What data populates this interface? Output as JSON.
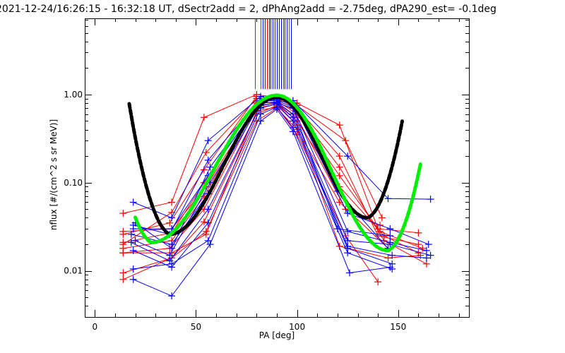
{
  "chart_data": {
    "type": "scatter",
    "title": "2021-12-24/16:26:15 - 16:32:18 UT, dSectr2add = 2, dPhAng2add = -2.75deg, dPA290_est=  -0.1deg",
    "xlabel": "PA [deg]",
    "ylabel": "nflux [#/(cm^2 s sr MeV)]",
    "xlim": [
      -5,
      185
    ],
    "ylim": [
      0.003,
      7.3
    ],
    "yscale": "log",
    "x_ticks": [
      {
        "value": 0,
        "label": "0"
      },
      {
        "value": 50,
        "label": "50"
      },
      {
        "value": 100,
        "label": "100"
      },
      {
        "value": 150,
        "label": "150"
      }
    ],
    "x_minor_step": 10,
    "y_ticks": [
      {
        "value": 0.01,
        "label": "0.01"
      },
      {
        "value": 0.1,
        "label": "0.10"
      },
      {
        "value": 1.0,
        "label": "1.00"
      }
    ],
    "colors": {
      "red": "#ff0000",
      "blue": "#0000ff",
      "black_fit": "#000000",
      "green_fit": "#00ee00",
      "axis": "#000000"
    },
    "series": [
      {
        "name": "red-1",
        "color": "red",
        "x": [
          14,
          38,
          54,
          80,
          90,
          100,
          121,
          140,
          160
        ],
        "y": [
          0.045,
          0.06,
          0.55,
          1.0,
          0.92,
          0.8,
          0.45,
          0.03,
          0.027
        ]
      },
      {
        "name": "red-2",
        "color": "red",
        "x": [
          14,
          37,
          54,
          80,
          90,
          100,
          121,
          140,
          160
        ],
        "y": [
          0.026,
          0.035,
          0.14,
          0.95,
          0.9,
          0.7,
          0.2,
          0.025,
          0.02
        ]
      },
      {
        "name": "red-3",
        "color": "red",
        "x": [
          14,
          38,
          54,
          80,
          90,
          100,
          121,
          141,
          162
        ],
        "y": [
          0.021,
          0.027,
          0.1,
          0.85,
          0.85,
          0.6,
          0.12,
          0.028,
          0.018
        ]
      },
      {
        "name": "red-4",
        "color": "red",
        "x": [
          14,
          38,
          54,
          80,
          90,
          100,
          121,
          143,
          164
        ],
        "y": [
          0.018,
          0.022,
          0.07,
          0.8,
          0.82,
          0.65,
          0.15,
          0.022,
          0.012
        ]
      },
      {
        "name": "red-5",
        "color": "red",
        "x": [
          14,
          37,
          54,
          80,
          90,
          100,
          121,
          143,
          160
        ],
        "y": [
          0.016,
          0.018,
          0.05,
          0.7,
          0.78,
          0.5,
          0.09,
          0.025,
          0.016
        ]
      },
      {
        "name": "red-6",
        "color": "red",
        "x": [
          14,
          38,
          54,
          80,
          90,
          100,
          121,
          145,
          161
        ],
        "y": [
          0.0095,
          0.014,
          0.036,
          0.6,
          0.75,
          0.45,
          0.019,
          0.014,
          0.015
        ]
      },
      {
        "name": "red-7",
        "color": "red",
        "x": [
          14,
          38,
          55,
          80,
          90,
          100,
          121,
          145
        ],
        "y": [
          0.008,
          0.014,
          0.028,
          0.5,
          0.7,
          0.4,
          0.06,
          0.018
        ]
      },
      {
        "name": "red-8",
        "color": "red",
        "x": [
          14,
          38,
          55,
          80,
          90,
          100,
          124,
          142
        ],
        "y": [
          0.02,
          0.046,
          0.22,
          0.9,
          0.88,
          0.75,
          0.3,
          0.04
        ]
      },
      {
        "name": "red-9",
        "color": "red",
        "x": [
          14,
          38,
          55,
          80,
          90,
          100,
          124,
          141
        ],
        "y": [
          0.028,
          0.03,
          0.09,
          0.75,
          0.8,
          0.55,
          0.05,
          0.033
        ]
      },
      {
        "name": "red-10",
        "color": "red",
        "x": [
          14,
          38,
          55,
          80,
          90,
          100,
          124,
          140
        ],
        "y": [
          0.016,
          0.016,
          0.026,
          0.65,
          0.72,
          0.35,
          0.025,
          0.0075
        ]
      },
      {
        "name": "blue-1",
        "color": "blue",
        "x": [
          19,
          38,
          56,
          82,
          90,
          98,
          125,
          145,
          166
        ],
        "y": [
          0.06,
          0.04,
          0.3,
          0.95,
          0.9,
          0.85,
          0.2,
          0.066,
          0.065
        ]
      },
      {
        "name": "blue-2",
        "color": "blue",
        "x": [
          19,
          37,
          56,
          82,
          90,
          98,
          125,
          146,
          165
        ],
        "y": [
          0.033,
          0.026,
          0.18,
          0.9,
          0.85,
          0.8,
          0.045,
          0.03,
          0.02
        ]
      },
      {
        "name": "blue-3",
        "color": "blue",
        "x": [
          19,
          38,
          56,
          82,
          90,
          98,
          125,
          146,
          164
        ],
        "y": [
          0.03,
          0.03,
          0.12,
          0.85,
          0.85,
          0.72,
          0.028,
          0.021,
          0.017
        ]
      },
      {
        "name": "blue-4",
        "color": "blue",
        "x": [
          18,
          38,
          56,
          82,
          90,
          98,
          125,
          146,
          166
        ],
        "y": [
          0.026,
          0.02,
          0.075,
          0.8,
          0.82,
          0.6,
          0.022,
          0.02,
          0.015
        ]
      },
      {
        "name": "blue-5",
        "color": "blue",
        "x": [
          18,
          37,
          56,
          82,
          90,
          98,
          125,
          147,
          164
        ],
        "y": [
          0.021,
          0.013,
          0.05,
          0.75,
          0.8,
          0.55,
          0.019,
          0.015,
          0.014
        ]
      },
      {
        "name": "blue-6",
        "color": "blue",
        "x": [
          19,
          38,
          56,
          82,
          90,
          98,
          125,
          147
        ],
        "y": [
          0.017,
          0.011,
          0.035,
          0.7,
          0.78,
          0.5,
          0.018,
          0.012
        ]
      },
      {
        "name": "blue-7",
        "color": "blue",
        "x": [
          19,
          38,
          56,
          82,
          90,
          98,
          125,
          147
        ],
        "y": [
          0.0105,
          0.012,
          0.022,
          0.6,
          0.72,
          0.42,
          0.016,
          0.0105
        ]
      },
      {
        "name": "blue-8",
        "color": "blue",
        "x": [
          19,
          38,
          57,
          82,
          90,
          98,
          126,
          146
        ],
        "y": [
          0.008,
          0.0052,
          0.02,
          0.5,
          0.68,
          0.38,
          0.0095,
          0.011
        ]
      },
      {
        "name": "blue-9",
        "color": "blue",
        "x": [
          20,
          38,
          57,
          82,
          90,
          98,
          120,
          145
        ],
        "y": [
          0.035,
          0.018,
          0.15,
          0.9,
          0.88,
          0.85,
          0.08,
          0.018
        ]
      },
      {
        "name": "blue-10",
        "color": "blue",
        "x": [
          20,
          37,
          57,
          82,
          90,
          98,
          120,
          146
        ],
        "y": [
          0.022,
          0.015,
          0.1,
          0.82,
          0.8,
          0.7,
          0.03,
          0.025
        ]
      }
    ],
    "fits": [
      {
        "name": "black-fit",
        "color": "black_fit",
        "x_range": [
          17,
          152
        ],
        "center": 90,
        "peak": 0.93,
        "min_left": 0.026,
        "min_left_x": 37,
        "min_right": 0.04,
        "min_right_x": 135
      },
      {
        "name": "green-fit",
        "color": "green_fit",
        "x_range": [
          20,
          161
        ],
        "center": 90,
        "peak": 0.98,
        "min_left": 0.021,
        "min_left_x": 28,
        "min_right": 0.017,
        "min_right_x": 145
      }
    ],
    "vertical_lines": [
      {
        "x": 79,
        "color": "red"
      },
      {
        "x": 82,
        "color": "red"
      },
      {
        "x": 83,
        "color": "blue"
      },
      {
        "x": 84,
        "color": "blue"
      },
      {
        "x": 85,
        "color": "red"
      },
      {
        "x": 86,
        "color": "blue"
      },
      {
        "x": 87,
        "color": "blue"
      },
      {
        "x": 88,
        "color": "blue"
      },
      {
        "x": 89,
        "color": "blue"
      },
      {
        "x": 90,
        "color": "blue"
      },
      {
        "x": 91,
        "color": "blue"
      },
      {
        "x": 92,
        "color": "blue"
      },
      {
        "x": 93,
        "color": "red"
      },
      {
        "x": 94,
        "color": "blue"
      },
      {
        "x": 95,
        "color": "blue"
      },
      {
        "x": 96,
        "color": "red"
      },
      {
        "x": 97,
        "color": "blue"
      }
    ],
    "vertical_lines_y": [
      1.15,
      7.3
    ]
  }
}
